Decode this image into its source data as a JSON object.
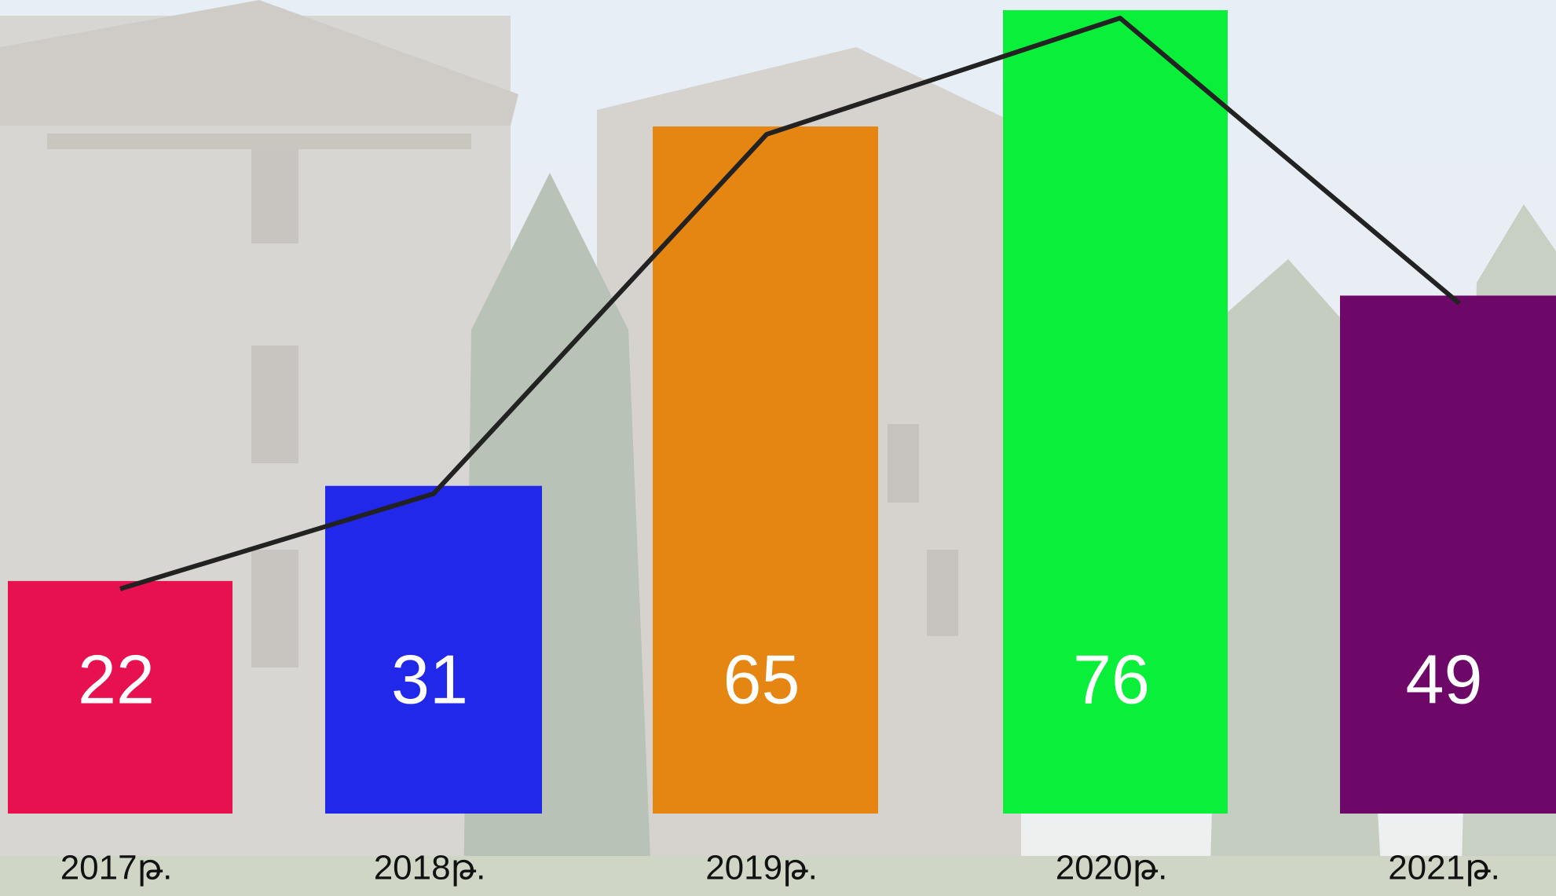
{
  "chart_data": {
    "type": "bar",
    "categories": [
      "2017թ.",
      "2018թ.",
      "2019թ.",
      "2020թ.",
      "2021թ."
    ],
    "values": [
      22,
      31,
      65,
      76,
      49
    ],
    "colors": [
      "#e8114f",
      "#2128ea",
      "#e68612",
      "#0af03a",
      "#6e0868"
    ],
    "line": true,
    "line_color": "#222222"
  }
}
